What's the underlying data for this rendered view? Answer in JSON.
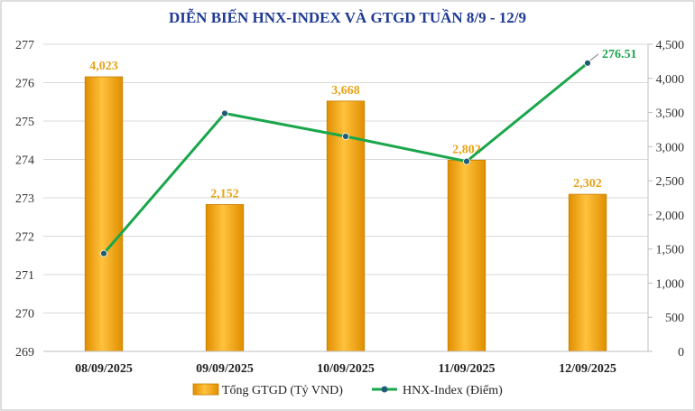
{
  "chart_data": {
    "type": "bar+line",
    "title": "DIỄN BIẾN HNX-INDEX VÀ GTGD TUẦN 8/9 - 12/9",
    "categories": [
      "08/09/2025",
      "09/09/2025",
      "10/09/2025",
      "11/09/2025",
      "12/09/2025"
    ],
    "series": [
      {
        "name": "Tổng GTGD (Tỷ VND)",
        "type": "bar",
        "axis": "right",
        "values": [
          4023,
          2152,
          3668,
          2802,
          2302
        ],
        "labels": [
          "4,023",
          "2,152",
          "3,668",
          "2,802",
          "2,302"
        ],
        "color": "#f5a300"
      },
      {
        "name": "HNX-Index (Điểm)",
        "type": "line",
        "axis": "left",
        "values": [
          271.55,
          275.2,
          274.6,
          273.95,
          276.51
        ],
        "labels": [
          "",
          "",
          "",
          "",
          "276.51"
        ],
        "color": "#1aa64b",
        "marker_color": "#1f5c73"
      }
    ],
    "left_axis": {
      "min": 269,
      "max": 277,
      "ticks": [
        269,
        270,
        271,
        272,
        273,
        274,
        275,
        276,
        277
      ],
      "tick_labels": [
        "269",
        "270",
        "271",
        "272",
        "273",
        "274",
        "275",
        "276",
        "277"
      ]
    },
    "right_axis": {
      "min": 0,
      "max": 4500,
      "ticks": [
        0,
        500,
        1000,
        1500,
        2000,
        2500,
        3000,
        3500,
        4000,
        4500
      ],
      "tick_labels": [
        "0",
        "500",
        "1,000",
        "1,500",
        "2,000",
        "2,500",
        "3,000",
        "3,500",
        "4,000",
        "4,500"
      ]
    },
    "grid": true,
    "legend_position": "bottom"
  }
}
